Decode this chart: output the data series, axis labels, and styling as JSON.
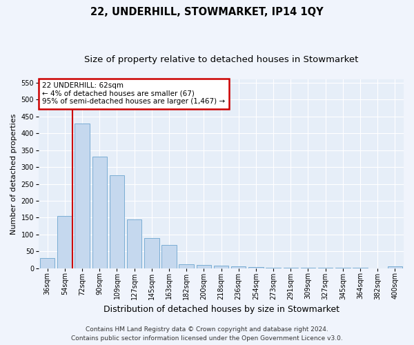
{
  "title": "22, UNDERHILL, STOWMARKET, IP14 1QY",
  "subtitle": "Size of property relative to detached houses in Stowmarket",
  "xlabel": "Distribution of detached houses by size in Stowmarket",
  "ylabel": "Number of detached properties",
  "categories": [
    "36sqm",
    "54sqm",
    "72sqm",
    "90sqm",
    "109sqm",
    "127sqm",
    "145sqm",
    "163sqm",
    "182sqm",
    "200sqm",
    "218sqm",
    "236sqm",
    "254sqm",
    "273sqm",
    "291sqm",
    "309sqm",
    "327sqm",
    "345sqm",
    "364sqm",
    "382sqm",
    "400sqm"
  ],
  "values": [
    30,
    155,
    430,
    330,
    275,
    145,
    90,
    68,
    12,
    10,
    8,
    5,
    3,
    2,
    2,
    2,
    2,
    2,
    2,
    0,
    5
  ],
  "bar_color": "#c5d8ee",
  "bar_edge_color": "#7aadd4",
  "vline_color": "#cc0000",
  "annotation_text": "22 UNDERHILL: 62sqm\n← 4% of detached houses are smaller (67)\n95% of semi-detached houses are larger (1,467) →",
  "annotation_box_facecolor": "#ffffff",
  "annotation_box_edgecolor": "#cc0000",
  "ylim": [
    0,
    560
  ],
  "yticks": [
    0,
    50,
    100,
    150,
    200,
    250,
    300,
    350,
    400,
    450,
    500,
    550
  ],
  "footer_line1": "Contains HM Land Registry data © Crown copyright and database right 2024.",
  "footer_line2": "Contains public sector information licensed under the Open Government Licence v3.0.",
  "fig_facecolor": "#f0f4fc",
  "plot_facecolor": "#e6eef8",
  "grid_color": "#ffffff",
  "title_fontsize": 10.5,
  "subtitle_fontsize": 9.5,
  "xlabel_fontsize": 9,
  "ylabel_fontsize": 8,
  "tick_fontsize": 7,
  "annotation_fontsize": 7.5,
  "footer_fontsize": 6.5
}
